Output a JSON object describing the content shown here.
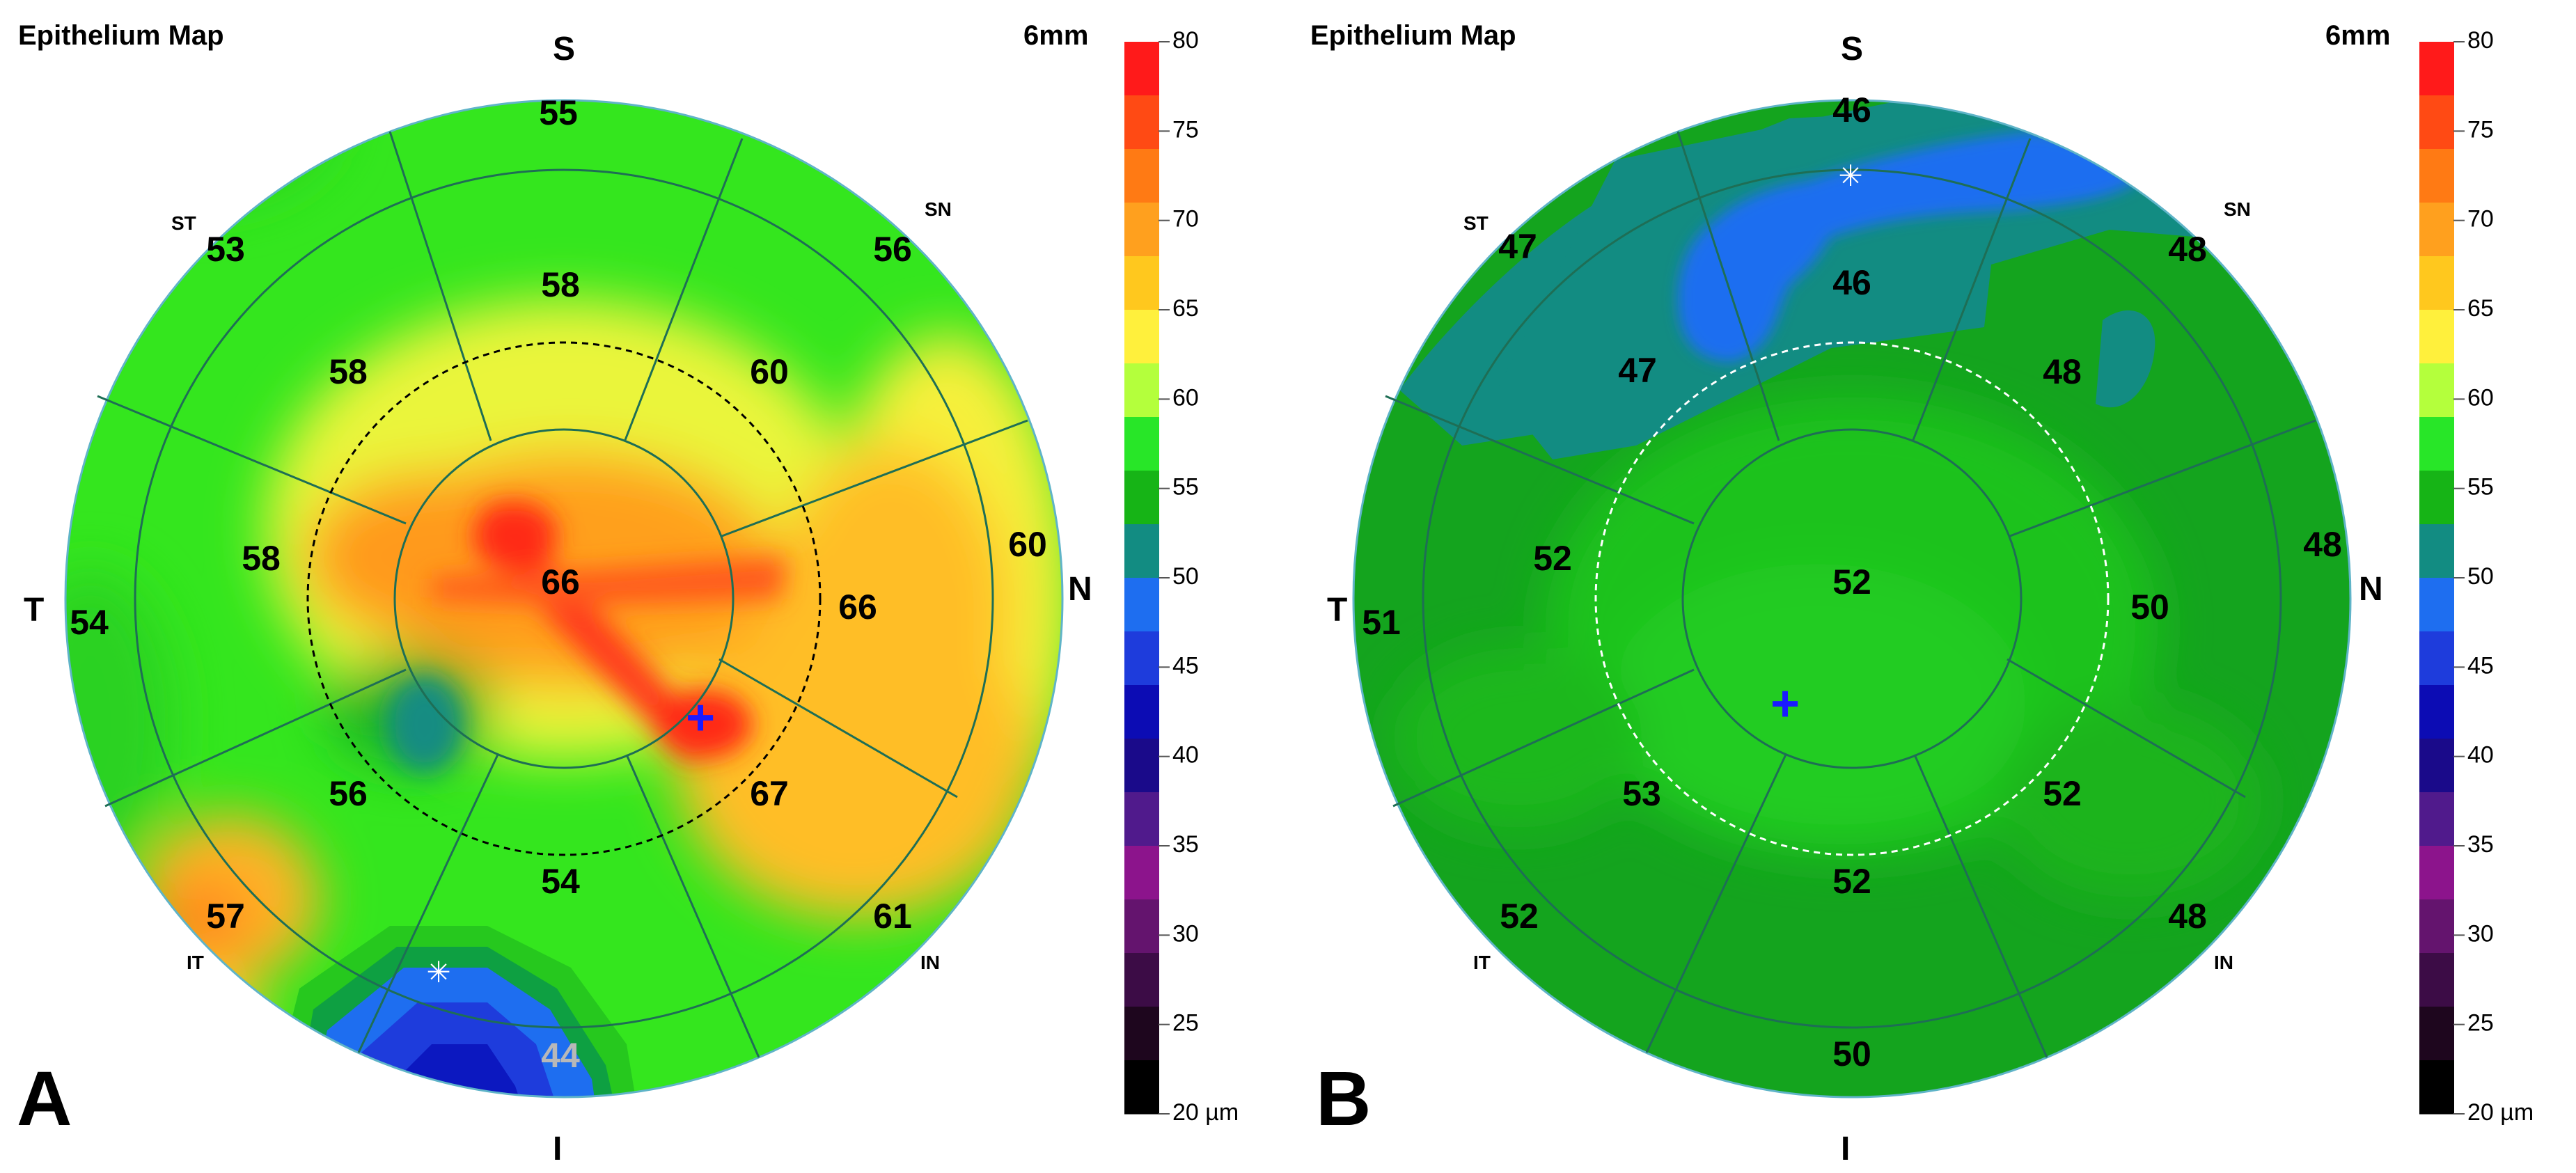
{
  "panels": [
    {
      "id": "A",
      "title": "Epithelium Map",
      "diameter": "6mm",
      "letter": "A",
      "directions": {
        "superior": "S",
        "inferior": "I",
        "temporal": "T",
        "nasal": "N",
        "st": "ST",
        "sn": "SN",
        "it": "IT",
        "in": "IN"
      },
      "values": {
        "center": "66",
        "para_s": "58",
        "para_sn": "60",
        "para_n": "66",
        "para_in": "67",
        "para_i": "54",
        "para_it": "56",
        "para_t": "58",
        "para_st": "58",
        "mid_s": "55",
        "mid_sn": "56",
        "mid_n": "60",
        "mid_in": "61",
        "mid_i": "44",
        "mid_it": "57",
        "mid_t": "54",
        "mid_st": "53"
      },
      "markers": {
        "thinnest": "✳",
        "thickest": "+"
      }
    },
    {
      "id": "B",
      "title": "Epithelium Map",
      "diameter": "6mm",
      "letter": "B",
      "directions": {
        "superior": "S",
        "inferior": "I",
        "temporal": "T",
        "nasal": "N",
        "st": "ST",
        "sn": "SN",
        "it": "IT",
        "in": "IN"
      },
      "values": {
        "center": "52",
        "para_s": "46",
        "para_sn": "48",
        "para_n": "50",
        "para_in": "52",
        "para_i": "52",
        "para_it": "53",
        "para_t": "52",
        "para_st": "47",
        "mid_s": "46",
        "mid_sn": "48",
        "mid_n": "48",
        "mid_in": "48",
        "mid_i": "50",
        "mid_it": "52",
        "mid_t": "51",
        "mid_st": "47"
      },
      "markers": {
        "thinnest": "✳",
        "thickest": "+"
      }
    }
  ],
  "scale": {
    "unit": "µm",
    "ticks": [
      "80",
      "75",
      "70",
      "65",
      "60",
      "55",
      "50",
      "45",
      "40",
      "35",
      "30",
      "25",
      "20 µm"
    ],
    "colors": [
      "#ff1a1a",
      "#ff4a14",
      "#ff7a14",
      "#ffa01e",
      "#ffc81e",
      "#fff03c",
      "#b4ff3c",
      "#28e628",
      "#16b416",
      "#128c82",
      "#1e6ef0",
      "#1e3cdc",
      "#0c0cb4",
      "#1a0a8a",
      "#501a8c",
      "#8c148c",
      "#64146e",
      "#3c0c46",
      "#1e061e",
      "#000000"
    ]
  }
}
